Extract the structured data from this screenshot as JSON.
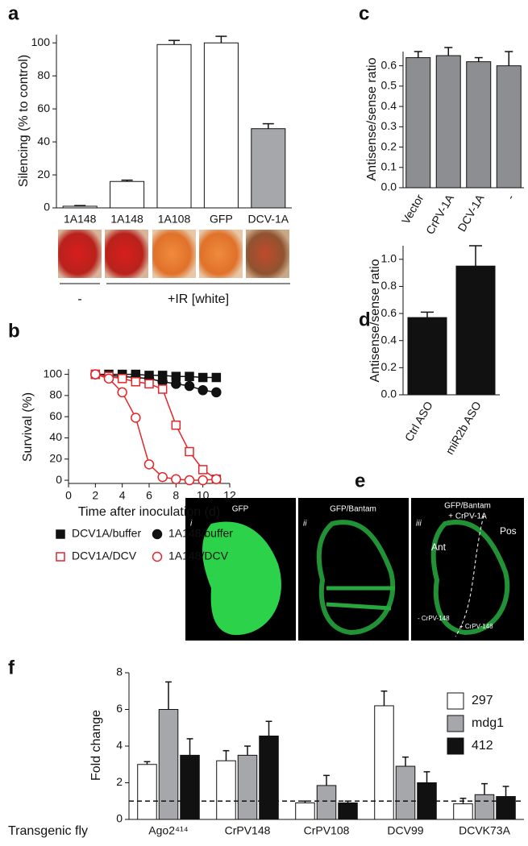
{
  "chart_data": [
    {
      "type": "bar",
      "panel": "a",
      "ylabel": "Silencing (% to control)",
      "categories": [
        "1A148",
        "1A148",
        "1A108",
        "GFP",
        "DCV-1A"
      ],
      "values": [
        1,
        16,
        99,
        100,
        48
      ],
      "errors": [
        0.4,
        0.8,
        2.5,
        4,
        3
      ],
      "colors": [
        "#ffffff",
        "#ffffff",
        "#ffffff",
        "#ffffff",
        "#a6a7aa"
      ],
      "ylim": [
        0,
        105
      ],
      "yticks": [
        0,
        20,
        40,
        60,
        80,
        100
      ],
      "groups": [
        "-",
        "+IR [white]"
      ]
    },
    {
      "type": "line",
      "panel": "b",
      "xlabel": "Time after inoculation (d)",
      "ylabel": "Survival (%)",
      "x": [
        2,
        3,
        4,
        5,
        6,
        7,
        8,
        9,
        10,
        11
      ],
      "series": [
        {
          "name": "DCV1A/buffer",
          "color": "#111111",
          "marker": "square",
          "filled": true,
          "values": [
            100,
            100,
            100,
            100,
            99,
            99,
            98,
            98,
            97,
            97
          ]
        },
        {
          "name": "1A148/buffer",
          "color": "#111111",
          "marker": "circle",
          "filled": true,
          "values": [
            100,
            99,
            98,
            97,
            96,
            93,
            91,
            89,
            85,
            83
          ]
        },
        {
          "name": "DCV1A/DCV",
          "color": "#e3262b",
          "marker": "square",
          "filled": false,
          "values": [
            100,
            98,
            96,
            93,
            91,
            86,
            52,
            27,
            10,
            1
          ]
        },
        {
          "name": "1A148/DCV",
          "color": "#e3262b",
          "marker": "circle",
          "filled": false,
          "values": [
            100,
            96,
            83,
            59,
            15,
            3,
            1,
            0,
            0,
            1
          ]
        }
      ],
      "xlim": [
        0,
        12
      ],
      "xticks": [
        0,
        2,
        4,
        6,
        8,
        10,
        12
      ],
      "ylim": [
        -3,
        105
      ],
      "yticks": [
        0,
        20,
        40,
        60,
        80,
        100
      ]
    },
    {
      "type": "bar",
      "panel": "c",
      "ylabel": "Antisense/sense ratio",
      "categories": [
        "Vector",
        "CrPV-1A",
        "DCV-1A",
        "-"
      ],
      "values": [
        0.64,
        0.65,
        0.62,
        0.6
      ],
      "errors": [
        0.03,
        0.04,
        0.02,
        0.07
      ],
      "color": "#8d8e91",
      "ylim": [
        0,
        0.67
      ],
      "yticks": [
        {
          "value": 0,
          "label": "0.0"
        },
        {
          "value": 0.1,
          "label": "0.1"
        },
        {
          "value": 0.2,
          "label": "0.2"
        },
        {
          "value": 0.3,
          "label": "0.3"
        },
        {
          "value": 0.4,
          "label": "0.4"
        },
        {
          "value": 0.5,
          "label": "0.5"
        },
        {
          "value": 0.6,
          "label": "0.6"
        }
      ]
    },
    {
      "type": "bar",
      "panel": "d",
      "ylabel": "Antisense/sense ratio",
      "categories": [
        "Ctrl ASO",
        "miR2b ASO"
      ],
      "values": [
        0.57,
        0.95
      ],
      "errors": [
        0.04,
        0.15
      ],
      "color": "#111111",
      "ylim": [
        0,
        1.1
      ],
      "yticks": [
        {
          "value": 0,
          "label": "0.0"
        },
        {
          "value": 0.2,
          "label": "0.2"
        },
        {
          "value": 0.4,
          "label": "0.4"
        },
        {
          "value": 0.6,
          "label": "0.6"
        },
        {
          "value": 0.8,
          "label": "0.8"
        },
        {
          "value": 1,
          "label": "1.0"
        }
      ]
    },
    {
      "type": "bar",
      "panel": "f",
      "ylabel": "Fold change",
      "xlabel": "Transgenic fly",
      "categories": [
        "Ago2⁴¹⁴",
        "CrPV148",
        "CrPV108",
        "DCV99",
        "DCVK73A"
      ],
      "series": [
        {
          "name": "297",
          "color": "#ffffff",
          "values": [
            3.0,
            3.2,
            0.9,
            6.2,
            0.85
          ],
          "errors": [
            0.15,
            0.55,
            0.1,
            0.8,
            0.3
          ]
        },
        {
          "name": "mdg1",
          "color": "#a6a7aa",
          "values": [
            6.0,
            3.5,
            1.85,
            2.9,
            1.35
          ],
          "errors": [
            1.5,
            0.5,
            0.55,
            0.5,
            0.6
          ]
        },
        {
          "name": "412",
          "color": "#111111",
          "values": [
            3.5,
            4.55,
            0.9,
            2.0,
            1.25
          ],
          "errors": [
            0.9,
            0.8,
            0.1,
            0.6,
            0.55
          ]
        }
      ],
      "ylim": [
        0,
        8
      ],
      "yticks": [
        0,
        2,
        4,
        6,
        8
      ],
      "reference_line": 1
    }
  ],
  "panel_e": {
    "panel": "e",
    "titles": [
      [
        "GFP"
      ],
      [
        "GFP/Bantam"
      ],
      [
        "GFP/Bantam",
        "+ CrPV-1A"
      ]
    ],
    "numerals": [
      "i",
      "ii",
      "iii"
    ],
    "regions": [
      "Ant",
      "Pos"
    ],
    "notes": [
      "- CrPV-148",
      "+ CrPV-148"
    ]
  }
}
